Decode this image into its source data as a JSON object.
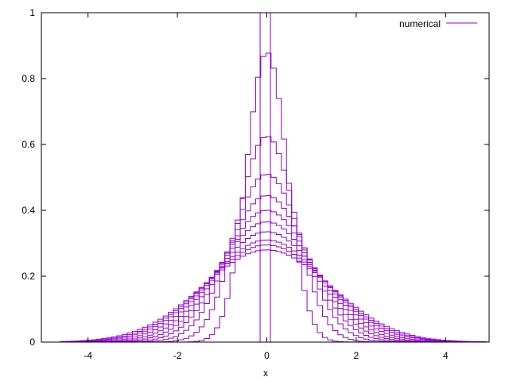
{
  "chart_data": {
    "type": "line",
    "title": "",
    "xlabel": "x",
    "ylabel": "",
    "xlim": [
      -5,
      5
    ],
    "ylim": [
      0,
      1
    ],
    "xticks": [
      "-4",
      "-2",
      "0",
      "2",
      "4"
    ],
    "xtick_values": [
      -4,
      -2,
      0,
      2,
      4
    ],
    "yticks": [
      "0",
      "0.2",
      "0.4",
      "0.6",
      "0.8",
      "1"
    ],
    "ytick_values": [
      0,
      0.2,
      0.4,
      0.6,
      0.8,
      1
    ],
    "grid": false,
    "legend_position": "top-right",
    "line_color": "#9400d3",
    "series": [
      {
        "name": "numerical",
        "kind": "initial-box",
        "box_x": [
          -0.15,
          0.08
        ],
        "peak": 1.0
      },
      {
        "kind": "profile",
        "peaks": [
          0.88,
          0.625,
          0.51,
          0.445,
          0.4,
          0.365,
          0.335,
          0.31,
          0.295,
          0.28
        ],
        "x_range": [
          -4.62,
          4.92
        ],
        "step_dx": 0.115
      }
    ]
  }
}
